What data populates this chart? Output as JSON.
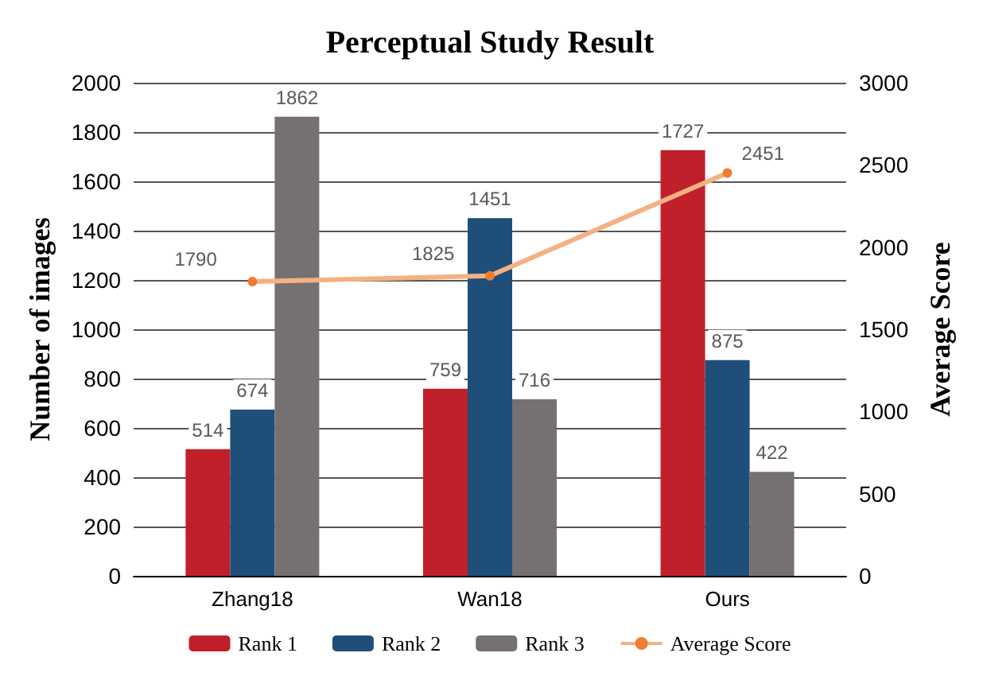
{
  "chart_data": {
    "type": "bar",
    "title": "Perceptual Study Result",
    "ylabel": "Number of images",
    "y2label": "Average Score",
    "categories": [
      "Zhang18",
      "Wan18",
      "Ours"
    ],
    "series": [
      {
        "name": "Rank 1",
        "color": "#c0202a",
        "values": [
          514,
          759,
          1727
        ]
      },
      {
        "name": "Rank 2",
        "color": "#1f4e79",
        "values": [
          674,
          1451,
          875
        ]
      },
      {
        "name": "Rank 3",
        "color": "#767171",
        "values": [
          1862,
          716,
          422
        ]
      },
      {
        "name": "Average Score",
        "type": "line",
        "axis": "y2",
        "color": "#f4b183",
        "values": [
          1790,
          1825,
          2451
        ]
      }
    ],
    "ylim": [
      0,
      2000
    ],
    "yticks": [
      0,
      200,
      400,
      600,
      800,
      1000,
      1200,
      1400,
      1600,
      1800,
      2000
    ],
    "y2lim": [
      0,
      3000
    ],
    "y2ticks": [
      0,
      500,
      1000,
      1500,
      2000,
      2500,
      3000
    ],
    "grid": "y",
    "legend": "bottom",
    "data_labels": true,
    "marker": "circle"
  }
}
